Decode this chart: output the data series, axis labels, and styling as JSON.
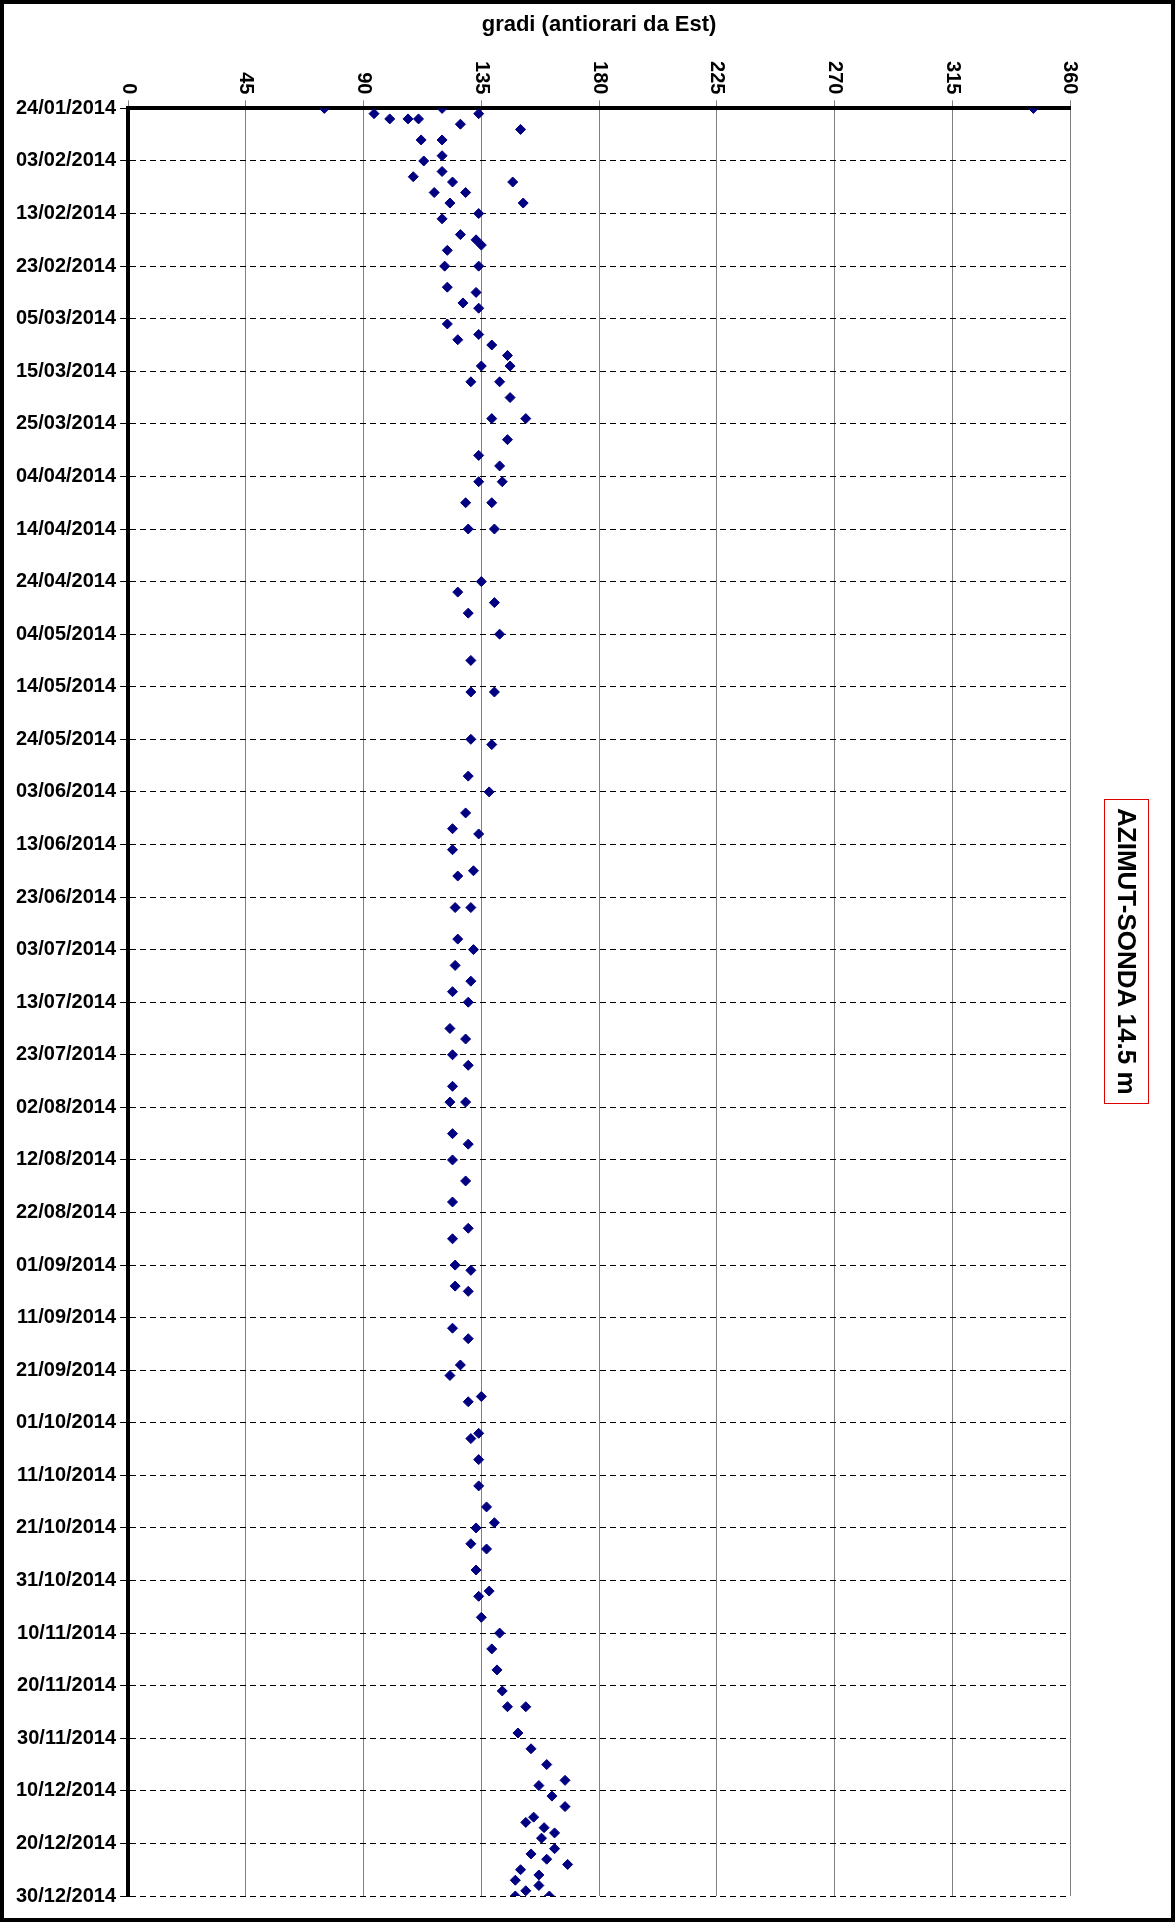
{
  "chart_data": {
    "type": "scatter",
    "title": "AZIMUT-SONDA 14.5 m",
    "xlabel": "gradi (antiorari da Est)",
    "orientation": "horizontal",
    "x": [
      "2014-01-24",
      "2014-01-24",
      "2014-01-24",
      "2014-01-25",
      "2014-01-25",
      "2014-01-26",
      "2014-01-26",
      "2014-01-26",
      "2014-01-27",
      "2014-01-28",
      "2014-01-30",
      "2014-01-30",
      "2014-02-02",
      "2014-02-03",
      "2014-02-05",
      "2014-02-06",
      "2014-02-07",
      "2014-02-07",
      "2014-02-09",
      "2014-02-09",
      "2014-02-11",
      "2014-02-11",
      "2014-02-13",
      "2014-02-14",
      "2014-02-17",
      "2014-02-18",
      "2014-02-19",
      "2014-02-20",
      "2014-02-23",
      "2014-02-23",
      "2014-02-27",
      "2014-02-28",
      "2014-03-02",
      "2014-03-03",
      "2014-03-06",
      "2014-03-08",
      "2014-03-09",
      "2014-03-10",
      "2014-03-12",
      "2014-03-14",
      "2014-03-14",
      "2014-03-17",
      "2014-03-17",
      "2014-03-20",
      "2014-03-24",
      "2014-03-24",
      "2014-03-28",
      "2014-03-31",
      "2014-04-02",
      "2014-04-05",
      "2014-04-05",
      "2014-04-09",
      "2014-04-09",
      "2014-04-14",
      "2014-04-14",
      "2014-04-24",
      "2014-04-26",
      "2014-04-28",
      "2014-04-30",
      "2014-05-04",
      "2014-05-09",
      "2014-05-15",
      "2014-05-15",
      "2014-05-24",
      "2014-05-25",
      "2014-05-31",
      "2014-06-03",
      "2014-06-07",
      "2014-06-10",
      "2014-06-11",
      "2014-06-14",
      "2014-06-18",
      "2014-06-19",
      "2014-06-25",
      "2014-06-25",
      "2014-07-01",
      "2014-07-03",
      "2014-07-06",
      "2014-07-09",
      "2014-07-11",
      "2014-07-13",
      "2014-07-18",
      "2014-07-20",
      "2014-07-23",
      "2014-07-25",
      "2014-07-29",
      "2014-08-01",
      "2014-08-01",
      "2014-08-07",
      "2014-08-09",
      "2014-08-12",
      "2014-08-16",
      "2014-08-20",
      "2014-08-25",
      "2014-08-27",
      "2014-09-01",
      "2014-09-02",
      "2014-09-05",
      "2014-09-06",
      "2014-09-13",
      "2014-09-15",
      "2014-09-20",
      "2014-09-22",
      "2014-09-26",
      "2014-09-27",
      "2014-10-03",
      "2014-10-04",
      "2014-10-08",
      "2014-10-13",
      "2014-10-17",
      "2014-10-20",
      "2014-10-21",
      "2014-10-24",
      "2014-10-25",
      "2014-10-29",
      "2014-11-02",
      "2014-11-03",
      "2014-11-07",
      "2014-11-10",
      "2014-11-13",
      "2014-11-17",
      "2014-11-21",
      "2014-11-24",
      "2014-11-24",
      "2014-11-29",
      "2014-12-02",
      "2014-12-05",
      "2014-12-08",
      "2014-12-09",
      "2014-12-11",
      "2014-12-13",
      "2014-12-15",
      "2014-12-16",
      "2014-12-17",
      "2014-12-18",
      "2014-12-19",
      "2014-12-21",
      "2014-12-22",
      "2014-12-23",
      "2014-12-24",
      "2014-12-25",
      "2014-12-26",
      "2014-12-27",
      "2014-12-28",
      "2014-12-29",
      "2014-12-30",
      "2014-12-30"
    ],
    "values": [
      75,
      346,
      120,
      94,
      134,
      100,
      107,
      111,
      127,
      150,
      112,
      120,
      120,
      113,
      120,
      109,
      124,
      147,
      117,
      129,
      151,
      123,
      134,
      120,
      127,
      133,
      135,
      122,
      121,
      134,
      122,
      133,
      128,
      134,
      122,
      134,
      126,
      139,
      145,
      146,
      135,
      131,
      142,
      146,
      152,
      139,
      145,
      134,
      142,
      143,
      134,
      129,
      139,
      140,
      130,
      135,
      126,
      140,
      130,
      142,
      131,
      131,
      140,
      131,
      139,
      130,
      138,
      129,
      124,
      134,
      124,
      132,
      126,
      125,
      131,
      126,
      132,
      125,
      131,
      124,
      130,
      123,
      129,
      124,
      130,
      124,
      123,
      129,
      124,
      130,
      124,
      129,
      124,
      130,
      124,
      125,
      131,
      125,
      130,
      124,
      130,
      127,
      123,
      135,
      130,
      134,
      131,
      134,
      134,
      137,
      140,
      133,
      131,
      137,
      133,
      138,
      134,
      135,
      142,
      139,
      141,
      143,
      152,
      145,
      149,
      154,
      160,
      167,
      157,
      162,
      167,
      155,
      152,
      159,
      163,
      158,
      163,
      154,
      160,
      168,
      150,
      157,
      148,
      157,
      152,
      148,
      161
    ],
    "color": "#000080",
    "marker": "diamond",
    "grid": true,
    "legend": false,
    "xlim": [
      0,
      360
    ],
    "xticks": [
      0,
      45,
      90,
      135,
      180,
      225,
      270,
      315,
      360
    ],
    "ylim": [
      "2014-12-30",
      "2014-01-24"
    ],
    "yticks": [
      {
        "value": "2014-01-24",
        "label": "24/01/2014"
      },
      {
        "value": "2014-02-03",
        "label": "03/02/2014"
      },
      {
        "value": "2014-02-13",
        "label": "13/02/2014"
      },
      {
        "value": "2014-02-23",
        "label": "23/02/2014"
      },
      {
        "value": "2014-03-05",
        "label": "05/03/2014"
      },
      {
        "value": "2014-03-15",
        "label": "15/03/2014"
      },
      {
        "value": "2014-03-25",
        "label": "25/03/2014"
      },
      {
        "value": "2014-04-04",
        "label": "04/04/2014"
      },
      {
        "value": "2014-04-14",
        "label": "14/04/2014"
      },
      {
        "value": "2014-04-24",
        "label": "24/04/2014"
      },
      {
        "value": "2014-05-04",
        "label": "04/05/2014"
      },
      {
        "value": "2014-05-14",
        "label": "14/05/2014"
      },
      {
        "value": "2014-05-24",
        "label": "24/05/2014"
      },
      {
        "value": "2014-06-03",
        "label": "03/06/2014"
      },
      {
        "value": "2014-06-13",
        "label": "13/06/2014"
      },
      {
        "value": "2014-06-23",
        "label": "23/06/2014"
      },
      {
        "value": "2014-07-03",
        "label": "03/07/2014"
      },
      {
        "value": "2014-07-13",
        "label": "13/07/2014"
      },
      {
        "value": "2014-07-23",
        "label": "23/07/2014"
      },
      {
        "value": "2014-08-02",
        "label": "02/08/2014"
      },
      {
        "value": "2014-08-12",
        "label": "12/08/2014"
      },
      {
        "value": "2014-08-22",
        "label": "22/08/2014"
      },
      {
        "value": "2014-09-01",
        "label": "01/09/2014"
      },
      {
        "value": "2014-09-11",
        "label": "11/09/2014"
      },
      {
        "value": "2014-09-21",
        "label": "21/09/2014"
      },
      {
        "value": "2014-10-01",
        "label": "01/10/2014"
      },
      {
        "value": "2014-10-11",
        "label": "11/10/2014"
      },
      {
        "value": "2014-10-21",
        "label": "21/10/2014"
      },
      {
        "value": "2014-10-31",
        "label": "31/10/2014"
      },
      {
        "value": "2014-11-10",
        "label": "10/11/2014"
      },
      {
        "value": "2014-11-20",
        "label": "20/11/2014"
      },
      {
        "value": "2014-11-30",
        "label": "30/11/2014"
      },
      {
        "value": "2014-12-10",
        "label": "10/12/2014"
      },
      {
        "value": "2014-12-20",
        "label": "20/12/2014"
      },
      {
        "value": "2014-12-30",
        "label": "30/12/2014"
      }
    ]
  }
}
